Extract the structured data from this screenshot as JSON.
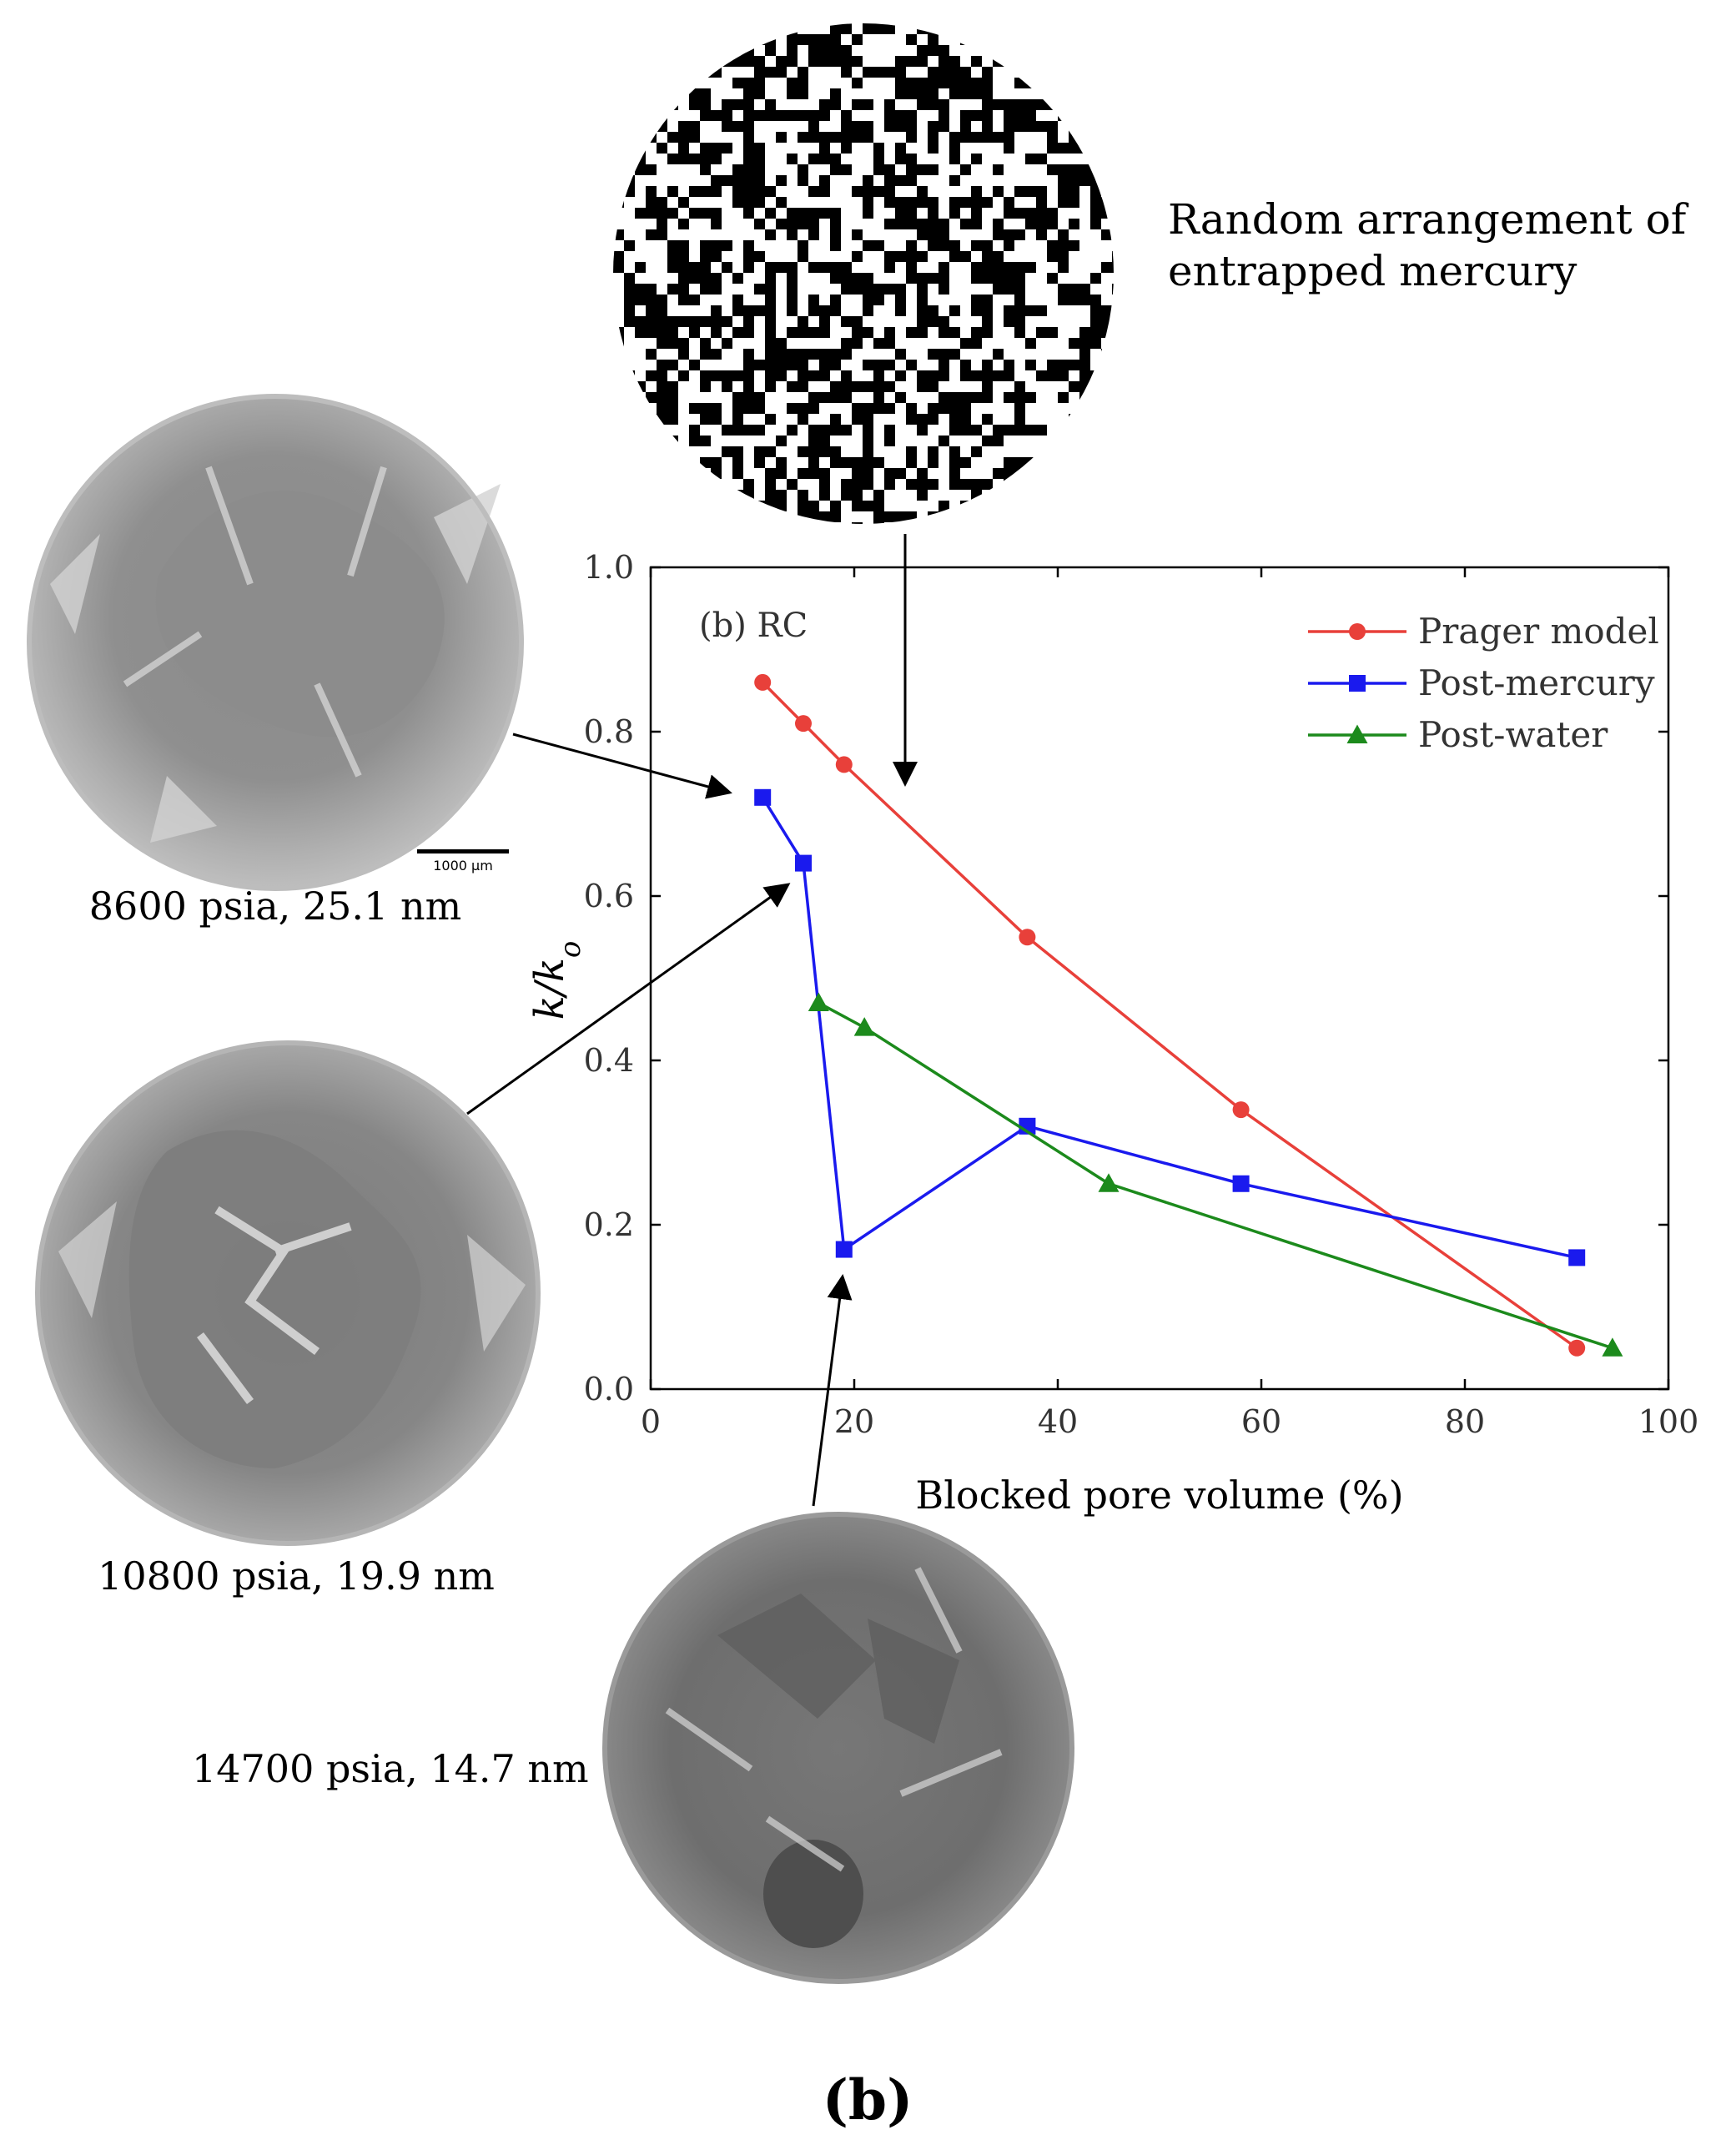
{
  "figure_label": "(b)",
  "captions": {
    "random_arrangement": [
      "Random arrangement of",
      "entrapped mercury"
    ],
    "scan_1": "8600 psia, 25.1 nm",
    "scan_2": "10800 psia, 19.9 nm",
    "scan_3": "14700 psia, 14.7 nm",
    "scale_bar": "1000 µm"
  },
  "chart_data": {
    "type": "line",
    "panel_label": "(b) RC",
    "xlabel": "Blocked pore volume (%)",
    "ylabel": "k/k",
    "ylabel_subscript": "o",
    "xlim": [
      0,
      100
    ],
    "ylim": [
      0,
      1.0
    ],
    "xticks": [
      "0",
      "20",
      "40",
      "60",
      "80",
      "100"
    ],
    "yticks": [
      "0.0",
      "0.2",
      "0.4",
      "0.6",
      "0.8",
      "1.0"
    ],
    "legend_position": "top-right",
    "series": [
      {
        "name": "Prager model",
        "color": "#e8403a",
        "marker": "circle",
        "points": [
          [
            11,
            0.86
          ],
          [
            15,
            0.81
          ],
          [
            19,
            0.76
          ],
          [
            37,
            0.55
          ],
          [
            58,
            0.34
          ],
          [
            91,
            0.05
          ]
        ]
      },
      {
        "name": "Post-mercury",
        "color": "#1a1aee",
        "marker": "square",
        "points": [
          [
            11,
            0.72
          ],
          [
            15,
            0.64
          ],
          [
            19,
            0.17
          ],
          [
            37,
            0.32
          ],
          [
            58,
            0.25
          ],
          [
            91,
            0.16
          ]
        ]
      },
      {
        "name": "Post-water",
        "color": "#1c8a1c",
        "marker": "triangle",
        "points": [
          [
            16.5,
            0.47
          ],
          [
            21,
            0.44
          ],
          [
            45,
            0.25
          ],
          [
            94.5,
            0.05
          ]
        ]
      }
    ]
  }
}
